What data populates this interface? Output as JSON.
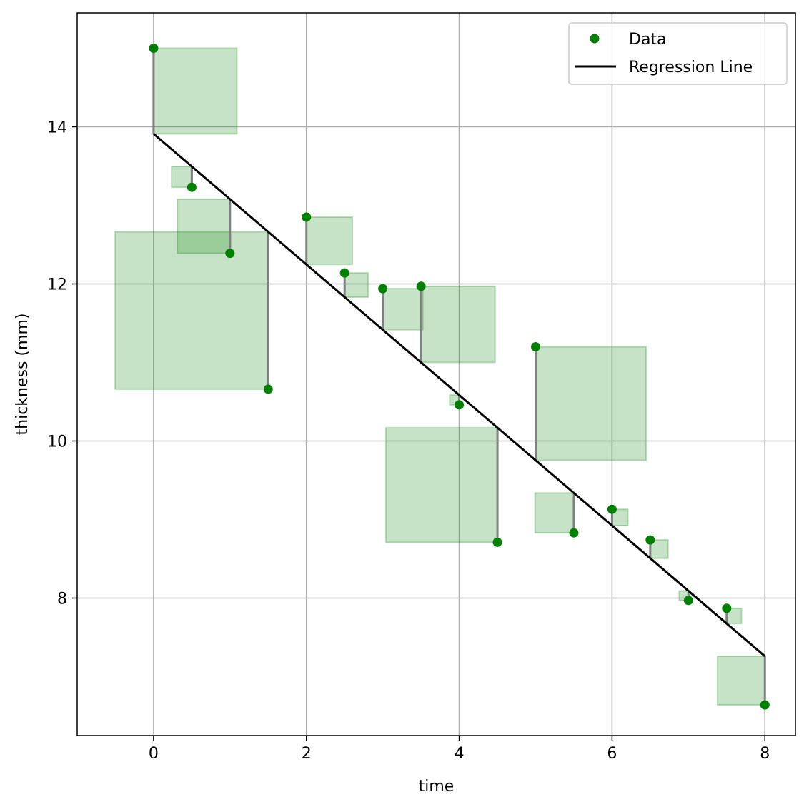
{
  "chart_data": {
    "type": "scatter",
    "title": "",
    "xlabel": "time",
    "ylabel": "thickness (mm)",
    "xlim": [
      -1.0,
      8.4
    ],
    "ylim": [
      6.25,
      15.45
    ],
    "xticks": [
      0,
      2,
      4,
      6,
      8
    ],
    "yticks": [
      8,
      10,
      12,
      14
    ],
    "grid": true,
    "legend_position": "top-right",
    "series": [
      {
        "name": "Data",
        "kind": "scatter",
        "color": "#008000",
        "x": [
          0,
          0.5,
          1,
          1.5,
          2,
          2.5,
          3,
          3.5,
          4,
          4.5,
          5,
          5.5,
          6,
          6.5,
          7,
          7.5,
          8
        ],
        "y": [
          15.0,
          13.23,
          12.39,
          10.66,
          12.85,
          12.14,
          11.94,
          11.97,
          10.46,
          8.71,
          11.2,
          8.83,
          9.13,
          8.74,
          7.97,
          7.87,
          6.64
        ]
      },
      {
        "name": "Regression Line",
        "kind": "line",
        "color": "#000000",
        "x": [
          0,
          8
        ],
        "y": [
          13.91,
          7.26
        ]
      }
    ],
    "residual_color": "#808080",
    "square_fill": "#008000",
    "square_opacity": 0.22
  },
  "legend": {
    "items": [
      {
        "label": "Data",
        "marker": "dot",
        "color": "#008000"
      },
      {
        "label": "Regression Line",
        "marker": "line",
        "color": "#000000"
      }
    ]
  }
}
